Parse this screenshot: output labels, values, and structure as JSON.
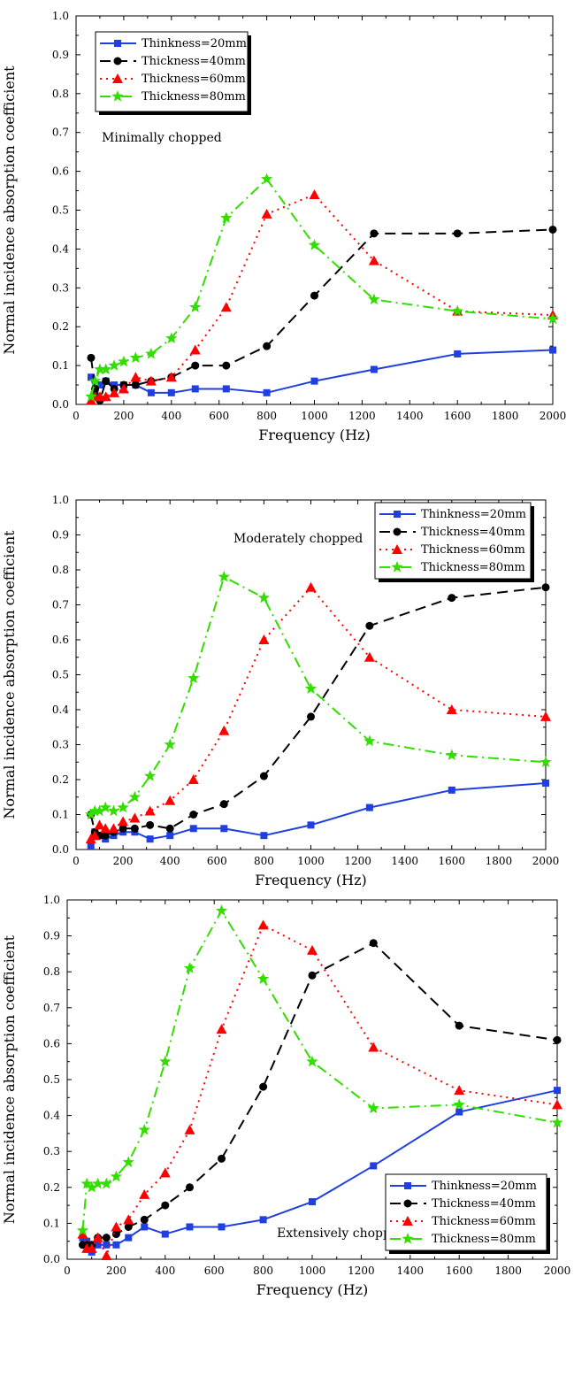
{
  "chart_data": [
    {
      "type": "line",
      "annotation": "Minimally chopped",
      "legend_position": "top-left",
      "xlabel": "Frequency (Hz)",
      "ylabel": "Normal incidence absorption coefficient",
      "xlim": [
        0,
        2000
      ],
      "ylim": [
        0,
        1.0
      ],
      "xticks": [
        "0",
        "200",
        "400",
        "600",
        "800",
        "1000",
        "1200",
        "1400",
        "1600",
        "1800",
        "2000"
      ],
      "yticks": [
        "0.0",
        "0.1",
        "0.2",
        "0.3",
        "0.4",
        "0.5",
        "0.6",
        "0.7",
        "0.8",
        "0.9",
        "1.0"
      ],
      "series": [
        {
          "name": "Thinkness=20mm",
          "color": "#1f3fe0",
          "dash": "solid",
          "marker": "square",
          "x": [
            63,
            80,
            100,
            125,
            160,
            200,
            250,
            315,
            400,
            500,
            630,
            800,
            1000,
            1250,
            1600,
            2000
          ],
          "y": [
            0.07,
            0.03,
            0.05,
            0.06,
            0.05,
            0.05,
            0.05,
            0.03,
            0.03,
            0.04,
            0.04,
            0.03,
            0.06,
            0.09,
            0.13,
            0.14
          ]
        },
        {
          "name": "Thickness=40mm",
          "color": "#000000",
          "dash": "dash",
          "marker": "circle",
          "x": [
            63,
            80,
            100,
            125,
            160,
            200,
            250,
            315,
            400,
            500,
            630,
            800,
            1000,
            1250,
            1600,
            2000
          ],
          "y": [
            0.12,
            0.04,
            0.01,
            0.06,
            0.04,
            0.05,
            0.05,
            0.06,
            0.07,
            0.1,
            0.1,
            0.15,
            0.28,
            0.44,
            0.44,
            0.45
          ]
        },
        {
          "name": "Thickness=60mm",
          "color": "#ff0000",
          "dash": "dot",
          "marker": "triangle",
          "x": [
            63,
            80,
            100,
            125,
            160,
            200,
            250,
            315,
            400,
            500,
            630,
            800,
            1000,
            1250,
            1600,
            2000
          ],
          "y": [
            0.01,
            0.02,
            0.02,
            0.02,
            0.03,
            0.04,
            0.07,
            0.06,
            0.07,
            0.14,
            0.25,
            0.49,
            0.54,
            0.37,
            0.24,
            0.23
          ]
        },
        {
          "name": "Thickness=80mm",
          "color": "#33dd00",
          "dash": "dashdot",
          "marker": "star",
          "x": [
            63,
            80,
            100,
            125,
            160,
            200,
            250,
            315,
            400,
            500,
            630,
            800,
            1000,
            1250,
            1600,
            2000
          ],
          "y": [
            0.02,
            0.06,
            0.09,
            0.09,
            0.1,
            0.11,
            0.12,
            0.13,
            0.17,
            0.25,
            0.48,
            0.58,
            0.41,
            0.27,
            0.24,
            0.22
          ]
        }
      ]
    },
    {
      "type": "line",
      "annotation": "Moderately chopped",
      "legend_position": "top-right",
      "xlabel": "Frequency (Hz)",
      "ylabel": "Normal incidence absorption coefficient",
      "xlim": [
        0,
        2000
      ],
      "ylim": [
        0,
        1.0
      ],
      "xticks": [
        "0",
        "200",
        "400",
        "600",
        "800",
        "1000",
        "1200",
        "1400",
        "1600",
        "1800",
        "2000"
      ],
      "yticks": [
        "0.0",
        "0.1",
        "0.2",
        "0.3",
        "0.4",
        "0.5",
        "0.6",
        "0.7",
        "0.8",
        "0.9",
        "1.0"
      ],
      "series": [
        {
          "name": "Thinkness=20mm",
          "color": "#1f3fe0",
          "dash": "solid",
          "marker": "square",
          "x": [
            63,
            80,
            100,
            125,
            160,
            200,
            250,
            315,
            400,
            500,
            630,
            800,
            1000,
            1250,
            1600,
            2000
          ],
          "y": [
            0.01,
            0.05,
            0.04,
            0.03,
            0.04,
            0.05,
            0.05,
            0.03,
            0.04,
            0.06,
            0.06,
            0.04,
            0.07,
            0.12,
            0.17,
            0.19
          ]
        },
        {
          "name": "Thickness=40mm",
          "color": "#000000",
          "dash": "dash",
          "marker": "circle",
          "x": [
            63,
            80,
            100,
            125,
            160,
            200,
            250,
            315,
            400,
            500,
            630,
            800,
            1000,
            1250,
            1600,
            2000
          ],
          "y": [
            0.1,
            0.05,
            0.04,
            0.04,
            0.05,
            0.06,
            0.06,
            0.07,
            0.06,
            0.1,
            0.13,
            0.21,
            0.38,
            0.64,
            0.72,
            0.75
          ]
        },
        {
          "name": "Thickness=60mm",
          "color": "#ff0000",
          "dash": "dot",
          "marker": "triangle",
          "x": [
            63,
            80,
            100,
            125,
            160,
            200,
            250,
            315,
            400,
            500,
            630,
            800,
            1000,
            1250,
            1600,
            2000
          ],
          "y": [
            0.03,
            0.04,
            0.07,
            0.06,
            0.06,
            0.08,
            0.09,
            0.11,
            0.14,
            0.2,
            0.34,
            0.6,
            0.75,
            0.55,
            0.4,
            0.38
          ]
        },
        {
          "name": "Thickness=80mm",
          "color": "#33dd00",
          "dash": "dashdot",
          "marker": "star",
          "x": [
            63,
            80,
            100,
            125,
            160,
            200,
            250,
            315,
            400,
            500,
            630,
            800,
            1000,
            1250,
            1600,
            2000
          ],
          "y": [
            0.1,
            0.11,
            0.11,
            0.12,
            0.11,
            0.12,
            0.15,
            0.21,
            0.3,
            0.49,
            0.78,
            0.72,
            0.46,
            0.31,
            0.27,
            0.25
          ]
        }
      ]
    },
    {
      "type": "line",
      "annotation": "Extensively chopped",
      "legend_position": "bottom-right",
      "xlabel": "Frequency (Hz)",
      "ylabel": "Normal incidence absorption coefficient",
      "xlim": [
        0,
        2000
      ],
      "ylim": [
        0,
        1.0
      ],
      "xticks": [
        "0",
        "200",
        "400",
        "600",
        "800",
        "1000",
        "1200",
        "1400",
        "1600",
        "1800",
        "2000"
      ],
      "yticks": [
        "0.0",
        "0.1",
        "0.2",
        "0.3",
        "0.4",
        "0.5",
        "0.6",
        "0.7",
        "0.8",
        "0.9",
        "1.0"
      ],
      "series": [
        {
          "name": "Thinkness=20mm",
          "color": "#1f3fe0",
          "dash": "solid",
          "marker": "square",
          "x": [
            63,
            80,
            100,
            125,
            160,
            200,
            250,
            315,
            400,
            500,
            630,
            800,
            1000,
            1250,
            1600,
            2000
          ],
          "y": [
            0.06,
            0.05,
            0.02,
            0.04,
            0.04,
            0.04,
            0.06,
            0.09,
            0.07,
            0.09,
            0.09,
            0.11,
            0.16,
            0.26,
            0.41,
            0.47
          ]
        },
        {
          "name": "Thickness=40mm",
          "color": "#000000",
          "dash": "dash",
          "marker": "circle",
          "x": [
            63,
            80,
            100,
            125,
            160,
            200,
            250,
            315,
            400,
            500,
            630,
            800,
            1000,
            1250,
            1600,
            2000
          ],
          "y": [
            0.04,
            0.04,
            0.04,
            0.06,
            0.06,
            0.07,
            0.09,
            0.11,
            0.15,
            0.2,
            0.28,
            0.48,
            0.79,
            0.88,
            0.65,
            0.61
          ]
        },
        {
          "name": "Thickness=60mm",
          "color": "#ff0000",
          "dash": "dot",
          "marker": "triangle",
          "x": [
            63,
            80,
            100,
            125,
            160,
            200,
            250,
            315,
            400,
            500,
            630,
            800,
            1000,
            1250,
            1600,
            2000
          ],
          "y": [
            0.07,
            0.03,
            0.03,
            0.06,
            0.01,
            0.09,
            0.11,
            0.18,
            0.24,
            0.36,
            0.64,
            0.93,
            0.86,
            0.59,
            0.47,
            0.43
          ]
        },
        {
          "name": "Thickness=80mm",
          "color": "#33dd00",
          "dash": "dashdot",
          "marker": "star",
          "x": [
            63,
            80,
            100,
            125,
            160,
            200,
            250,
            315,
            400,
            500,
            630,
            800,
            1000,
            1250,
            1600,
            2000
          ],
          "y": [
            0.08,
            0.21,
            0.2,
            0.21,
            0.21,
            0.23,
            0.27,
            0.36,
            0.55,
            0.81,
            0.97,
            0.78,
            0.55,
            0.42,
            0.43,
            0.38
          ]
        }
      ]
    }
  ]
}
